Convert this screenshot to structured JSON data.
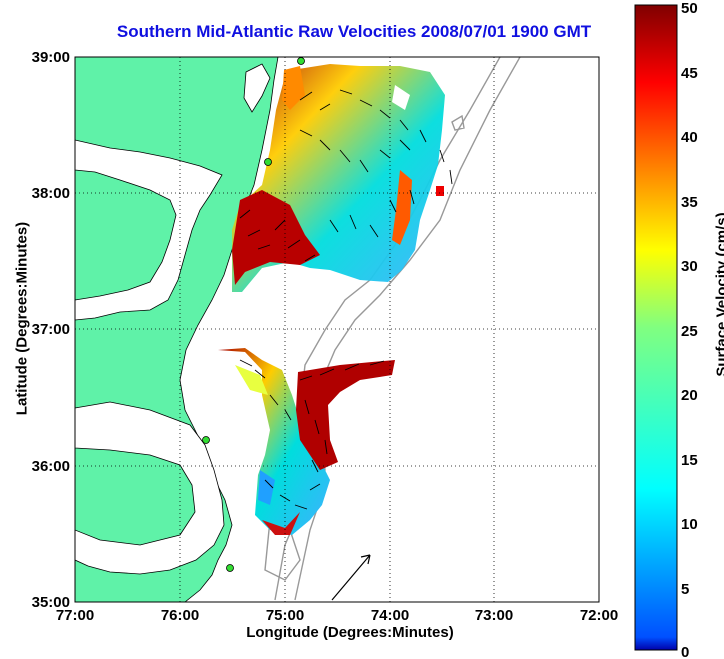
{
  "title": "Southern Mid-Atlantic Raw Velocities 2008/07/01 1900 GMT",
  "xlabel": "Longitude (Degrees:Minutes)",
  "ylabel": "Latitude (Degrees:Minutes)",
  "colorbar_label": "Surface Velocity (cm/s)",
  "x_ticks": [
    "77:00",
    "76:00",
    "75:00",
    "74:00",
    "73:00",
    "72:00"
  ],
  "y_ticks": [
    "39:00",
    "38:00",
    "37:00",
    "36:00",
    "35:00"
  ],
  "colorbar_ticks": [
    "50",
    "45",
    "40",
    "35",
    "30",
    "25",
    "20",
    "15",
    "10",
    "5",
    "0"
  ],
  "colors": {
    "land": "#5ff2a8",
    "title": "#1010e0",
    "grid": "#000000"
  },
  "chart_data": {
    "type": "heatmap",
    "xlim": [
      -77,
      -72
    ],
    "ylim": [
      35,
      39
    ],
    "clim": [
      0,
      50
    ],
    "colormap": "jet",
    "grid": true
  }
}
